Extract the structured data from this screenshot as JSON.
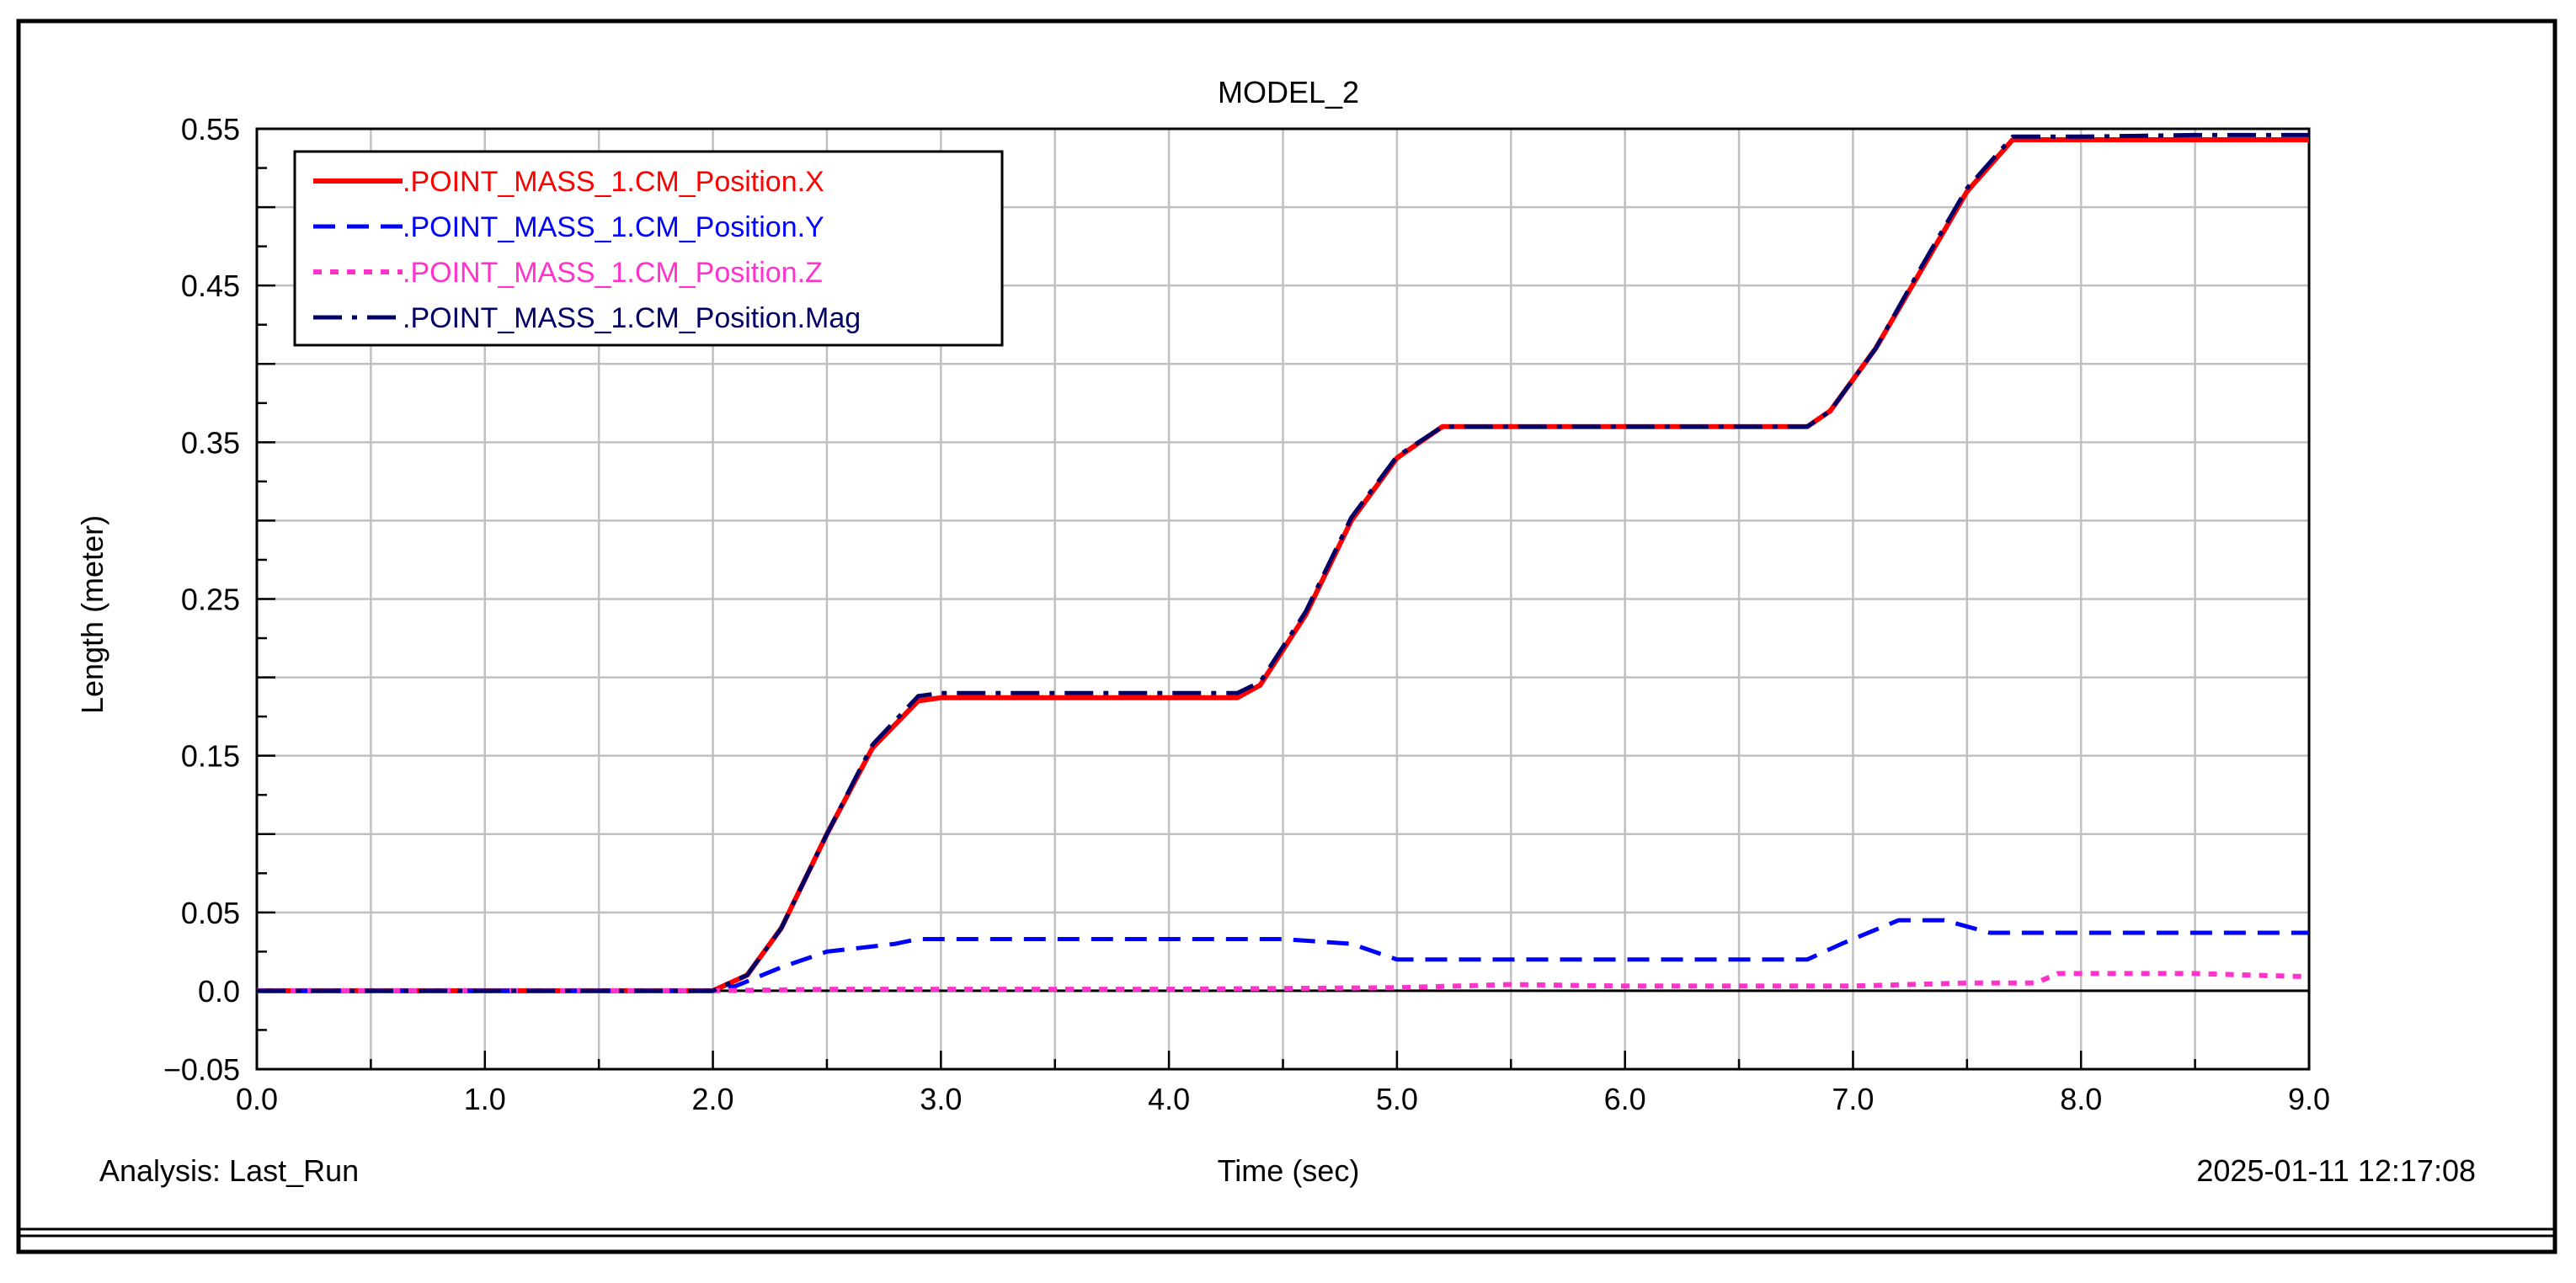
{
  "footer": {
    "analysis_label": "Analysis:  Last_Run",
    "timestamp": "2025-01-11 12:17:08"
  },
  "chart_data": {
    "type": "line",
    "title": "MODEL_2",
    "xlabel": "Time (sec)",
    "ylabel": "Length (meter)",
    "xlim": [
      0.0,
      9.0
    ],
    "ylim": [
      -0.05,
      0.55
    ],
    "xticks": [
      0.0,
      1.0,
      2.0,
      3.0,
      4.0,
      5.0,
      6.0,
      7.0,
      8.0,
      9.0
    ],
    "xtick_labels": [
      "0.0",
      "1.0",
      "2.0",
      "3.0",
      "4.0",
      "5.0",
      "6.0",
      "7.0",
      "8.0",
      "9.0"
    ],
    "yticks": [
      -0.05,
      0.0,
      0.05,
      0.15,
      0.25,
      0.35,
      0.45,
      0.55
    ],
    "ytick_labels": [
      "−0.05",
      "0.0",
      "0.05",
      "0.15",
      "0.25",
      "0.35",
      "0.45",
      "0.55"
    ],
    "ygrid": [
      -0.05,
      0.0,
      0.05,
      0.1,
      0.15,
      0.2,
      0.25,
      0.3,
      0.35,
      0.4,
      0.45,
      0.5,
      0.55
    ],
    "grid": true,
    "legend_position": "top-left",
    "series": [
      {
        "name": ".POINT_MASS_1.CM_Position.X",
        "color": "#ff0000",
        "style": "solid",
        "x": [
          0.0,
          1.0,
          2.0,
          2.15,
          2.3,
          2.5,
          2.7,
          2.9,
          3.0,
          3.5,
          4.0,
          4.3,
          4.4,
          4.6,
          4.8,
          5.0,
          5.2,
          5.5,
          6.0,
          6.5,
          6.8,
          6.9,
          7.1,
          7.3,
          7.5,
          7.7,
          8.0,
          8.5,
          9.0
        ],
        "y": [
          0.0,
          0.0,
          0.0,
          0.01,
          0.04,
          0.1,
          0.155,
          0.185,
          0.187,
          0.187,
          0.187,
          0.187,
          0.195,
          0.24,
          0.3,
          0.34,
          0.36,
          0.36,
          0.36,
          0.36,
          0.36,
          0.37,
          0.41,
          0.46,
          0.51,
          0.543,
          0.543,
          0.543,
          0.543
        ]
      },
      {
        "name": ".POINT_MASS_1.CM_Position.Y",
        "color": "#0000ff",
        "style": "dashed",
        "x": [
          0.0,
          1.0,
          2.0,
          2.1,
          2.3,
          2.5,
          2.8,
          2.9,
          3.5,
          4.0,
          4.5,
          4.8,
          5.0,
          5.5,
          6.0,
          6.5,
          6.8,
          6.95,
          7.2,
          7.4,
          7.6,
          7.8,
          8.0,
          9.0
        ],
        "y": [
          0.0,
          0.0,
          0.0,
          0.003,
          0.015,
          0.025,
          0.03,
          0.033,
          0.033,
          0.033,
          0.033,
          0.03,
          0.02,
          0.02,
          0.02,
          0.02,
          0.02,
          0.03,
          0.045,
          0.045,
          0.037,
          0.037,
          0.037,
          0.037
        ]
      },
      {
        "name": ".POINT_MASS_1.CM_Position.Z",
        "color": "#ff33cc",
        "style": "dotted",
        "x": [
          0.0,
          1.0,
          2.0,
          2.5,
          3.0,
          4.0,
          5.0,
          5.5,
          6.0,
          7.0,
          7.5,
          7.8,
          7.9,
          8.5,
          9.0
        ],
        "y": [
          0.0,
          0.0,
          0.0,
          0.001,
          0.001,
          0.001,
          0.002,
          0.004,
          0.003,
          0.003,
          0.005,
          0.005,
          0.011,
          0.011,
          0.009
        ]
      },
      {
        "name": ".POINT_MASS_1.CM_Position.Mag",
        "color": "#000066",
        "style": "dash-dot",
        "x": [
          0.0,
          1.0,
          2.0,
          2.15,
          2.3,
          2.5,
          2.7,
          2.9,
          3.0,
          3.5,
          4.0,
          4.3,
          4.4,
          4.6,
          4.8,
          5.0,
          5.2,
          5.5,
          6.0,
          6.5,
          6.8,
          6.9,
          7.1,
          7.3,
          7.5,
          7.7,
          8.0,
          8.5,
          9.0
        ],
        "y": [
          0.0,
          0.0,
          0.0,
          0.01,
          0.04,
          0.1,
          0.157,
          0.188,
          0.19,
          0.19,
          0.19,
          0.19,
          0.197,
          0.242,
          0.302,
          0.341,
          0.36,
          0.36,
          0.36,
          0.36,
          0.36,
          0.37,
          0.41,
          0.462,
          0.512,
          0.545,
          0.545,
          0.546,
          0.546
        ]
      }
    ]
  }
}
